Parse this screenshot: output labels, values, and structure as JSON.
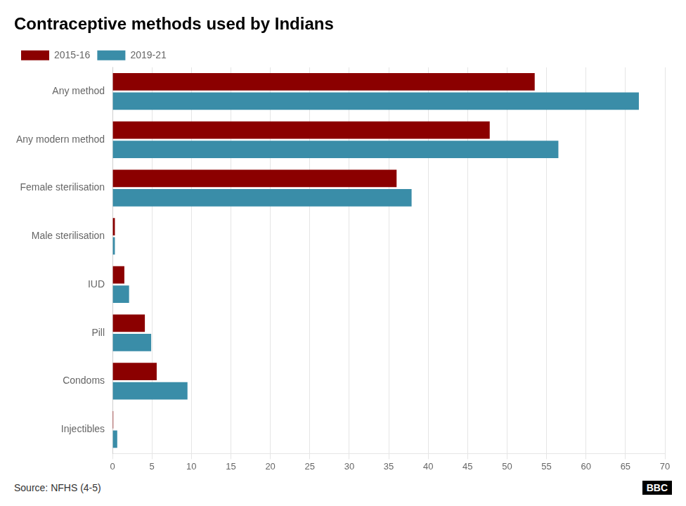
{
  "chart_data": {
    "type": "bar",
    "orientation": "horizontal",
    "title": "Contraceptive methods used by Indians",
    "categories": [
      "Injectibles",
      "Condoms",
      "Pill",
      "IUD",
      "Male sterilisation",
      "Female sterilisation",
      "Any modern method",
      "Any method"
    ],
    "series": [
      {
        "name": "2015-16",
        "color": "#8B0000",
        "values": [
          0.1,
          5.6,
          4.1,
          1.5,
          0.3,
          36.0,
          47.8,
          53.5
        ]
      },
      {
        "name": "2019-21",
        "color": "#3a8da8",
        "values": [
          0.6,
          9.5,
          4.9,
          2.1,
          0.3,
          37.9,
          56.5,
          66.7
        ]
      }
    ],
    "xlim": [
      0,
      70
    ],
    "xticks": [
      0,
      5,
      10,
      15,
      20,
      25,
      30,
      35,
      40,
      45,
      50,
      55,
      60,
      65,
      70
    ],
    "grid": true,
    "legend": "upper left",
    "annotations": [
      "Source: NFHS (4-5)",
      "BBC"
    ]
  }
}
